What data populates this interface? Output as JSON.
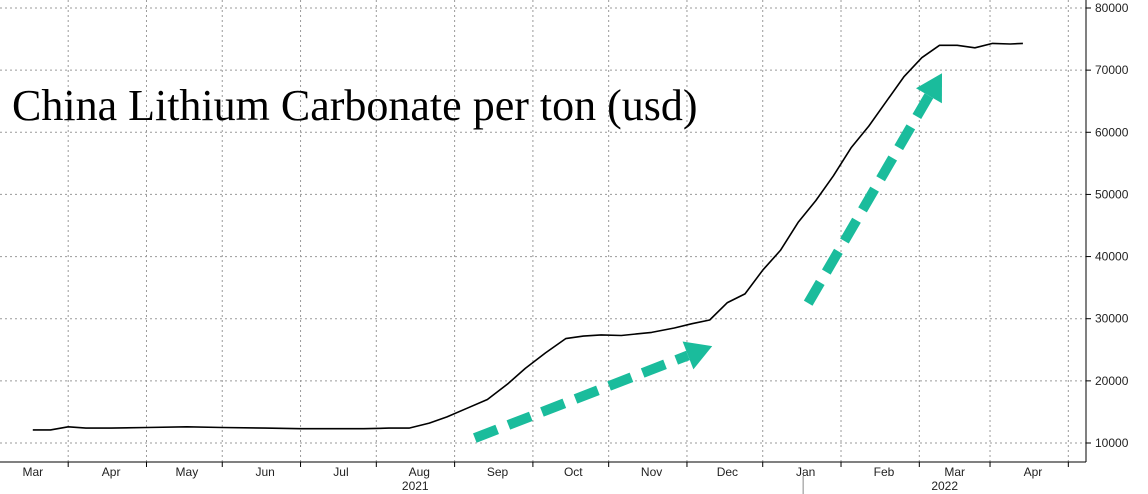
{
  "chart_data": {
    "type": "line",
    "title": "China Lithium Carbonate per ton (usd)",
    "ylim": [
      8000,
      82000
    ],
    "y_ticks": [
      10000,
      20000,
      30000,
      40000,
      50000,
      60000,
      70000,
      80000
    ],
    "x_ticks": [
      "Mar",
      "Apr",
      "May",
      "Jun",
      "Jul",
      "Aug",
      "Sep",
      "Oct",
      "Nov",
      "Dec",
      "Jan",
      "Feb",
      "Mar",
      "Apr"
    ],
    "years": [
      "2021",
      "2022"
    ],
    "grid": true,
    "y_axis_side": "right",
    "colors": {
      "line": "#000000",
      "arrow": "#1abc9c",
      "grid": "#9a9a9a"
    },
    "series": [
      {
        "x": [
          "2021-03-01",
          "2021-03-08",
          "2021-03-15",
          "2021-03-22",
          "2021-04-01",
          "2021-04-15",
          "2021-05-01",
          "2021-05-15",
          "2021-06-01",
          "2021-06-15",
          "2021-07-01",
          "2021-07-10",
          "2021-07-20",
          "2021-07-28",
          "2021-08-05",
          "2021-08-12",
          "2021-08-20",
          "2021-08-28",
          "2021-09-05",
          "2021-09-12",
          "2021-09-20",
          "2021-09-28",
          "2021-10-05",
          "2021-10-12",
          "2021-10-20",
          "2021-11-01",
          "2021-11-10",
          "2021-11-17",
          "2021-11-24",
          "2021-12-01",
          "2021-12-08",
          "2021-12-15",
          "2021-12-22",
          "2021-12-29",
          "2022-01-05",
          "2022-01-12",
          "2022-01-19",
          "2022-01-26",
          "2022-02-02",
          "2022-02-09",
          "2022-02-16",
          "2022-02-23",
          "2022-03-02",
          "2022-03-09",
          "2022-03-16",
          "2022-03-23",
          "2022-03-28"
        ],
        "values": [
          12100,
          12100,
          12600,
          12400,
          12400,
          12500,
          12600,
          12500,
          12400,
          12300,
          12300,
          12300,
          12400,
          12400,
          13200,
          14200,
          15600,
          17000,
          19500,
          22000,
          24500,
          26800,
          27200,
          27400,
          27300,
          27800,
          28500,
          29200,
          29800,
          32600,
          34000,
          37800,
          41000,
          45500,
          49000,
          53000,
          57500,
          61000,
          65000,
          69000,
          72000,
          74000,
          74000,
          73600,
          74300,
          74200,
          74300
        ]
      }
    ],
    "annotations": [
      {
        "type": "arrow",
        "from": [
          "2021-08-23",
          10800
        ],
        "to": [
          "2021-11-25",
          25600
        ]
      },
      {
        "type": "arrow",
        "from": [
          "2022-01-02",
          32500
        ],
        "to": [
          "2022-02-24",
          69500
        ]
      }
    ]
  }
}
